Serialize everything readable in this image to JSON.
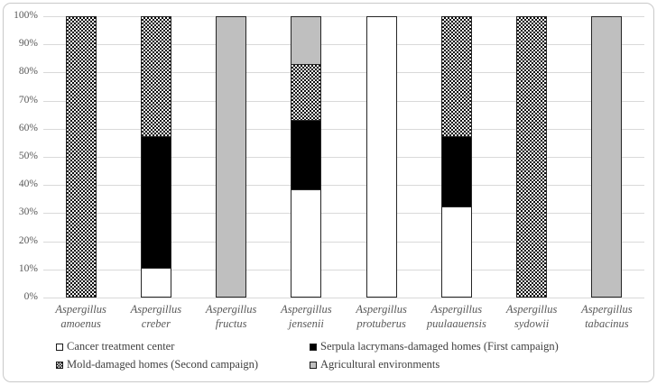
{
  "chart_data": {
    "type": "bar",
    "stacked": true,
    "percent_stacked": true,
    "title": "",
    "xlabel": "",
    "ylabel": "",
    "ylim": [
      0,
      100
    ],
    "grid": true,
    "legend_position": "bottom",
    "categories": [
      [
        "Aspergillus",
        "amoenus"
      ],
      [
        "Aspergillus",
        "creber"
      ],
      [
        "Aspergillus",
        "fructus"
      ],
      [
        "Aspergillus",
        "jensenii"
      ],
      [
        "Aspergillus",
        "protuberus"
      ],
      [
        "Aspergillus",
        "puulaauensis"
      ],
      [
        "Aspergillus",
        "sydowii"
      ],
      [
        "Aspergillus",
        "tabacinus"
      ]
    ],
    "series": [
      {
        "name": "Cancer treatment center",
        "fill": "#ffffff",
        "pattern": "solid",
        "values": [
          0,
          10,
          0,
          38,
          100,
          32,
          0,
          0
        ]
      },
      {
        "name": "Serpula lacrymans-damaged homes (First campaign)",
        "fill": "#000000",
        "pattern": "solid",
        "values": [
          0,
          47,
          0,
          25,
          0,
          25,
          0,
          0
        ]
      },
      {
        "name": "Mold-damaged homes (Second campaign)",
        "fill": "checkerboard-black-white",
        "pattern": "checker",
        "values": [
          100,
          43,
          0,
          20,
          0,
          43,
          100,
          0
        ]
      },
      {
        "name": "Agricultural environments",
        "fill": "#bfbfbf",
        "pattern": "solid",
        "values": [
          0,
          0,
          100,
          17,
          0,
          0,
          0,
          100
        ]
      }
    ],
    "y_ticks": [
      "100%",
      "90%",
      "80%",
      "70%",
      "60%",
      "50%",
      "40%",
      "30%",
      "20%",
      "10%",
      "0%"
    ]
  },
  "colors": {
    "text": "#595959",
    "gridline": "#d9d9d9",
    "bar_border": "#262626",
    "agricultural_gray": "#bfbfbf",
    "frame_border": "#c9c9c9"
  }
}
